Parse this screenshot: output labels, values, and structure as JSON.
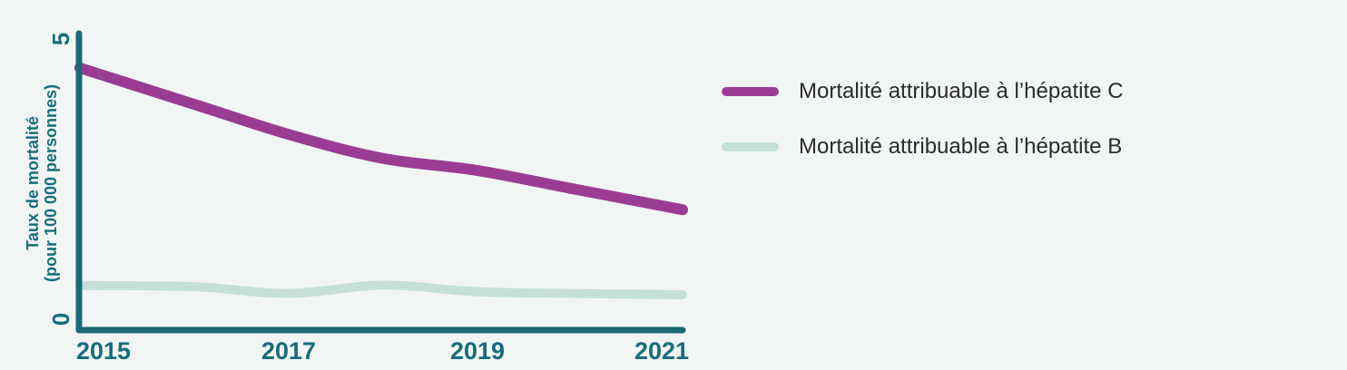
{
  "chart_data": {
    "type": "line",
    "x": [
      2015,
      2016,
      2017,
      2018,
      2019,
      2020,
      2021
    ],
    "series": [
      {
        "name": "Mortalité attribuable à l’hépatite C",
        "color": "#9b3c94",
        "values": [
          4.3,
          3.8,
          3.3,
          2.9,
          2.7,
          2.4,
          2.1
        ]
      },
      {
        "name": "Mortalité attribuable à l’hépatite B",
        "color": "#c5e0d8",
        "values": [
          0.75,
          0.73,
          0.62,
          0.76,
          0.65,
          0.62,
          0.6
        ]
      }
    ],
    "title": "",
    "xlabel": "",
    "ylabel_line1": "Taux de mortalité",
    "ylabel_line2": "(pour 100 000 personnes)",
    "ylim": [
      0,
      5
    ],
    "y_ticks": [
      0,
      5
    ],
    "x_ticks": [
      2015,
      2017,
      2019,
      2021
    ],
    "grid": false,
    "legend_position": "right"
  },
  "axis": {
    "tick_top": "5",
    "tick_bottom": "0",
    "x_labels": [
      "2015",
      "2017",
      "2019",
      "2021"
    ]
  },
  "legend": {
    "items": [
      {
        "label": "Mortalité attribuable à l’hépatite C",
        "color": "#9b3c94"
      },
      {
        "label": "Mortalité attribuable à l’hépatite B",
        "color": "#c5e0d8"
      }
    ]
  },
  "colors": {
    "background": "#f1f6f4",
    "axis": "#1a6878",
    "axis_text": "#176d7d",
    "hepatitis_c": "#9b3c94",
    "hepatitis_b": "#c5e0d8",
    "legend_text": "#2b2b2b"
  }
}
